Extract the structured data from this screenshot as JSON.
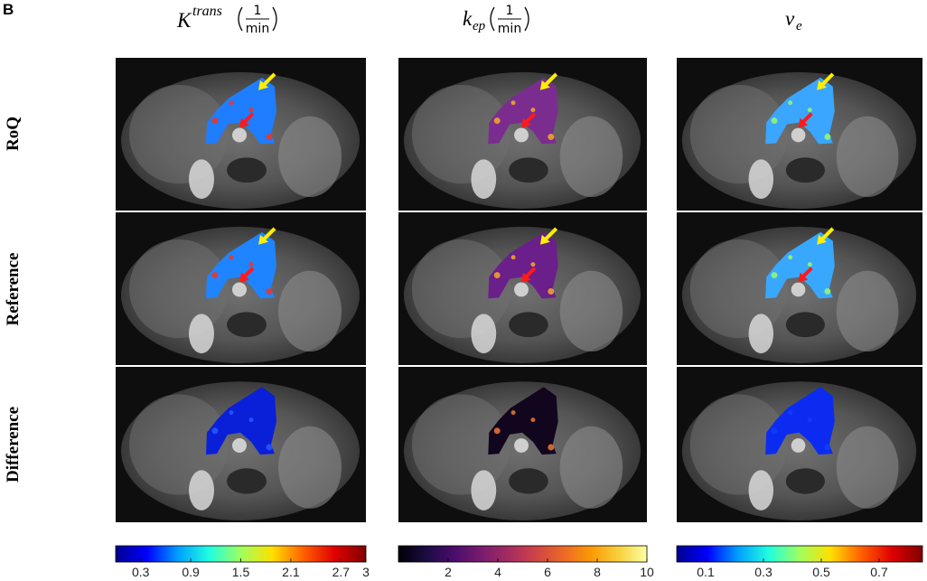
{
  "panel_label": "B",
  "columns": [
    {
      "symbol": "K",
      "superscript": "trans",
      "unit": {
        "numerator": "1",
        "denominator": "min"
      }
    },
    {
      "symbol": "k",
      "subscript": "ep",
      "unit": {
        "numerator": "1",
        "denominator": "min"
      }
    },
    {
      "symbol": "v",
      "subscript": "e"
    }
  ],
  "rows": [
    "RoQ",
    "Reference",
    "Difference"
  ],
  "colorbars": [
    {
      "colormap": "jet",
      "xlim": [
        0,
        3
      ],
      "xticks": [
        0.3,
        0.9,
        1.5,
        2.1,
        2.7,
        3
      ]
    },
    {
      "colormap": "inferno",
      "xlim": [
        0,
        10
      ],
      "xticks": [
        2,
        4,
        6,
        8,
        10
      ]
    },
    {
      "colormap": "jet",
      "xlim": [
        0,
        0.85
      ],
      "xticks": [
        0.1,
        0.3,
        0.5,
        0.7
      ]
    }
  ]
}
